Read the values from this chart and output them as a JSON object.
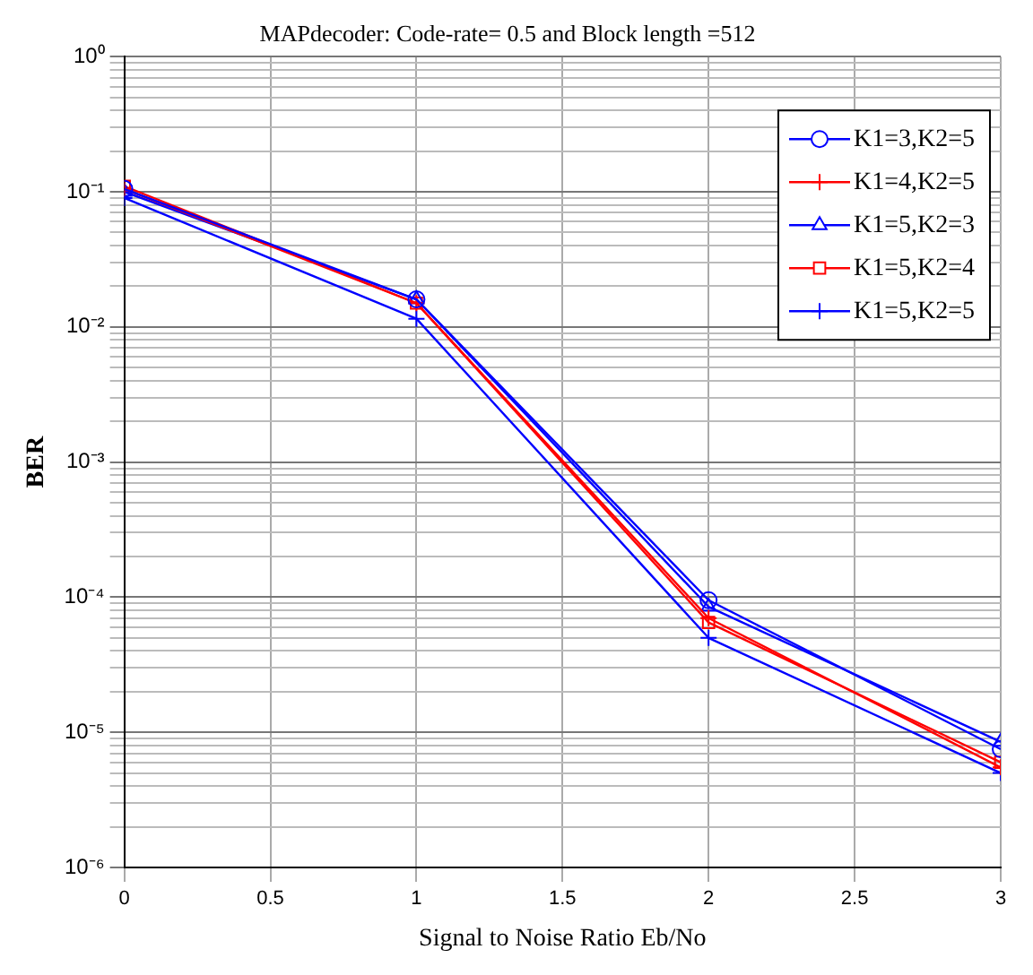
{
  "chart_data": {
    "type": "line",
    "title": "MAPdecoder: Code-rate= 0.5 and Block length =512",
    "xlabel": "Signal to Noise Ratio Eb/No",
    "ylabel": "BER",
    "x": [
      0,
      1,
      2,
      3
    ],
    "series": [
      {
        "name": "K1=3,K2=5",
        "color": "#0000ff",
        "marker": "circle",
        "values": [
          0.105,
          0.016,
          9.5e-05,
          7.5e-06
        ]
      },
      {
        "name": "K1=4,K2=5",
        "color": "#ff0000",
        "marker": "cross",
        "values": [
          0.105,
          0.015,
          7e-05,
          5.5e-06
        ]
      },
      {
        "name": "K1=5,K2=3",
        "color": "#0000ff",
        "marker": "triangle",
        "values": [
          0.1,
          0.016,
          8.5e-05,
          8.5e-06
        ]
      },
      {
        "name": "K1=5,K2=4",
        "color": "#ff0000",
        "marker": "square",
        "values": [
          0.11,
          0.015,
          6.5e-05,
          6e-06
        ]
      },
      {
        "name": "K1=5,K2=5",
        "color": "#0000ff",
        "marker": "cross",
        "values": [
          0.09,
          0.0115,
          5e-05,
          5e-06
        ]
      }
    ],
    "log": "y",
    "xlim": [
      0,
      3
    ],
    "xticks": [
      0,
      0.5,
      1,
      1.5,
      2,
      2.5,
      3
    ],
    "ylim": [
      1e-06,
      1
    ],
    "yticks": [
      {
        "value": 1e-06,
        "label": "10⁻⁶"
      },
      {
        "value": 2e-06,
        "label": null
      },
      {
        "value": 3e-06,
        "label": null
      },
      {
        "value": 4e-06,
        "label": null
      },
      {
        "value": 5e-06,
        "label": null
      },
      {
        "value": 6e-06,
        "label": null
      },
      {
        "value": 7e-06,
        "label": null
      },
      {
        "value": 8e-06,
        "label": null
      },
      {
        "value": 9e-06,
        "label": null
      },
      {
        "value": 1e-05,
        "label": "10⁻⁵"
      },
      {
        "value": 2e-05,
        "label": null
      },
      {
        "value": 3e-05,
        "label": null
      },
      {
        "value": 4e-05,
        "label": null
      },
      {
        "value": 5e-05,
        "label": null
      },
      {
        "value": 6e-05,
        "label": null
      },
      {
        "value": 7e-05,
        "label": null
      },
      {
        "value": 8e-05,
        "label": null
      },
      {
        "value": 9e-05,
        "label": null
      },
      {
        "value": 0.0001,
        "label": "10⁻⁴"
      },
      {
        "value": 0.0002,
        "label": null
      },
      {
        "value": 0.0003,
        "label": null
      },
      {
        "value": 0.0004,
        "label": null
      },
      {
        "value": 0.0005,
        "label": null
      },
      {
        "value": 0.0006,
        "label": null
      },
      {
        "value": 0.0007,
        "label": null
      },
      {
        "value": 0.0008,
        "label": null
      },
      {
        "value": 0.0009,
        "label": null
      },
      {
        "value": 0.001,
        "label": "10⁻³"
      },
      {
        "value": 0.002,
        "label": null
      },
      {
        "value": 0.003,
        "label": null
      },
      {
        "value": 0.004,
        "label": null
      },
      {
        "value": 0.005,
        "label": null
      },
      {
        "value": 0.006,
        "label": null
      },
      {
        "value": 0.007,
        "label": null
      },
      {
        "value": 0.008,
        "label": null
      },
      {
        "value": 0.009,
        "label": null
      },
      {
        "value": 0.01,
        "label": "10⁻²"
      },
      {
        "value": 0.02,
        "label": null
      },
      {
        "value": 0.03,
        "label": null
      },
      {
        "value": 0.04,
        "label": null
      },
      {
        "value": 0.05,
        "label": null
      },
      {
        "value": 0.06,
        "label": null
      },
      {
        "value": 0.07,
        "label": null
      },
      {
        "value": 0.08,
        "label": null
      },
      {
        "value": 0.09,
        "label": null
      },
      {
        "value": 0.1,
        "label": "10⁻¹"
      },
      {
        "value": 0.2,
        "label": null
      },
      {
        "value": 0.3,
        "label": null
      },
      {
        "value": 0.4,
        "label": null
      },
      {
        "value": 0.5,
        "label": null
      },
      {
        "value": 0.6,
        "label": null
      },
      {
        "value": 0.7,
        "label": null
      },
      {
        "value": 0.8,
        "label": null
      },
      {
        "value": 0.9,
        "label": null
      },
      {
        "value": 1,
        "label": "10⁰"
      }
    ],
    "grid": true,
    "legend": "top right",
    "line_style": "solid"
  }
}
